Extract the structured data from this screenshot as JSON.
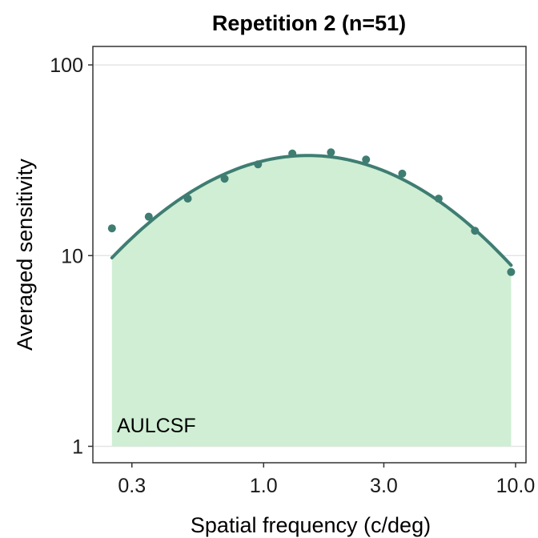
{
  "chart_data": {
    "type": "line",
    "title": "Repetition 2 (n=51)",
    "xlabel": "Spatial frequency (c/deg)",
    "ylabel": "Averaged sensitivity",
    "x_scale": "log",
    "y_scale": "log",
    "xlim": [
      0.21,
      11.0
    ],
    "ylim": [
      0.82,
      125
    ],
    "x_ticks": [
      0.3,
      1.0,
      3.0,
      10.0
    ],
    "x_tick_labels": [
      "0.3",
      "1.0",
      "3.0",
      "10.0"
    ],
    "y_ticks": [
      1,
      10,
      100
    ],
    "y_tick_labels": [
      "1",
      "10",
      "100"
    ],
    "grid": "horizontal major only",
    "annotation": "AULCSF",
    "colors": {
      "points": "#3f7d72",
      "curve": "#3f7d72",
      "area_fill": "#cfeed4",
      "grid": "#e5e5e5",
      "axis": "#333333"
    },
    "points": {
      "x": [
        0.25,
        0.35,
        0.5,
        0.7,
        0.95,
        1.3,
        1.85,
        2.55,
        3.55,
        4.95,
        6.9,
        9.6
      ],
      "y": [
        13.9,
        16.0,
        19.9,
        25.3,
        30.1,
        34.3,
        34.8,
        31.9,
        26.9,
        19.9,
        13.5,
        8.2
      ]
    },
    "curve": {
      "peak_frequency": 1.5,
      "peak_sensitivity": 33.5,
      "x_range": [
        0.25,
        9.6
      ]
    },
    "area_floor": 1
  }
}
